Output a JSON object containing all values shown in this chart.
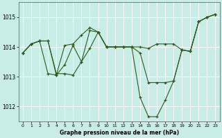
{
  "title": "Graphe pression niveau de la mer (hPa)",
  "bg_color": "#c8ece6",
  "grid_color": "#ffffff",
  "line_color": "#2d5a1b",
  "xlim": [
    -0.5,
    23.5
  ],
  "ylim": [
    1011.5,
    1015.5
  ],
  "yticks": [
    1012,
    1013,
    1014,
    1015
  ],
  "xticks": [
    0,
    1,
    2,
    3,
    4,
    5,
    6,
    7,
    8,
    9,
    10,
    11,
    12,
    13,
    14,
    15,
    16,
    17,
    18,
    19,
    20,
    21,
    22,
    23
  ],
  "series": [
    [
      1013.8,
      1014.1,
      1014.2,
      1014.2,
      1013.05,
      1013.4,
      1014.05,
      1013.5,
      1014.55,
      1014.5,
      1014.0,
      1014.0,
      1014.0,
      1014.0,
      1013.8,
      1012.8,
      1012.8,
      1012.8,
      1012.85,
      1013.9,
      1013.85,
      1014.85,
      1015.0,
      1015.1
    ],
    [
      1013.8,
      1014.1,
      1014.2,
      1013.1,
      1013.05,
      1014.05,
      1014.1,
      1014.4,
      1014.65,
      1014.5,
      1014.0,
      1014.0,
      1014.0,
      1014.0,
      1012.3,
      1011.65,
      1011.65,
      1012.2,
      1012.85,
      1013.9,
      1013.85,
      1014.85,
      1015.0,
      1015.1
    ],
    [
      1013.8,
      1014.1,
      1014.2,
      1014.2,
      1013.1,
      1013.1,
      1013.05,
      1013.5,
      1013.95,
      1014.5,
      1014.0,
      1014.0,
      1014.0,
      1014.0,
      1014.0,
      1013.95,
      1014.1,
      1014.1,
      1014.1,
      1013.9,
      1013.85,
      1014.85,
      1015.0,
      1015.1
    ]
  ]
}
